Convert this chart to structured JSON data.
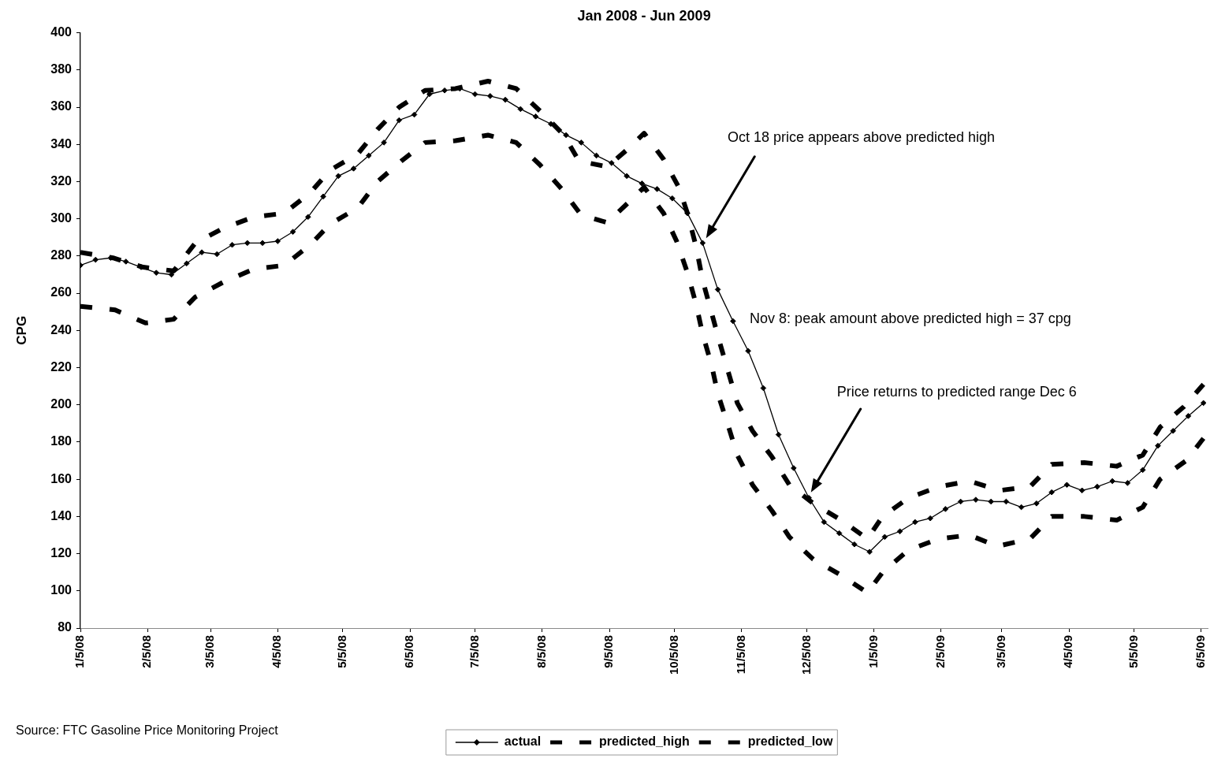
{
  "chart_data": {
    "type": "line",
    "title": "Jan 2008 - Jun 2009",
    "ylabel": "CPG",
    "xlim": [
      "2008-01-05",
      "2009-06-08"
    ],
    "xticks": [
      {
        "value": "2008-01-05",
        "label": "1/5/08"
      },
      {
        "value": "2008-02-05",
        "label": "2/5/08"
      },
      {
        "value": "2008-03-05",
        "label": "3/5/08"
      },
      {
        "value": "2008-04-05",
        "label": "4/5/08"
      },
      {
        "value": "2008-05-05",
        "label": "5/5/08"
      },
      {
        "value": "2008-06-05",
        "label": "6/5/08"
      },
      {
        "value": "2008-07-05",
        "label": "7/5/08"
      },
      {
        "value": "2008-08-05",
        "label": "8/5/08"
      },
      {
        "value": "2008-09-05",
        "label": "9/5/08"
      },
      {
        "value": "2008-10-05",
        "label": "10/5/08"
      },
      {
        "value": "2008-11-05",
        "label": "11/5/08"
      },
      {
        "value": "2008-12-05",
        "label": "12/5/08"
      },
      {
        "value": "2009-01-05",
        "label": "1/5/09"
      },
      {
        "value": "2009-02-05",
        "label": "2/5/09"
      },
      {
        "value": "2009-03-05",
        "label": "3/5/09"
      },
      {
        "value": "2009-04-05",
        "label": "4/5/09"
      },
      {
        "value": "2009-05-05",
        "label": "5/5/09"
      },
      {
        "value": "2009-06-05",
        "label": "6/5/09"
      }
    ],
    "ylim": [
      80,
      400
    ],
    "yticks": [
      80,
      100,
      120,
      140,
      160,
      180,
      200,
      220,
      240,
      260,
      280,
      300,
      320,
      340,
      360,
      380,
      400
    ],
    "legend": "bottom",
    "series": [
      {
        "name": "actual",
        "color": "#000000",
        "marker": "diamond",
        "line_style": "solid",
        "x": [
          "2008-01-05",
          "2008-01-12",
          "2008-01-19",
          "2008-01-26",
          "2008-02-02",
          "2008-02-09",
          "2008-02-16",
          "2008-02-23",
          "2008-03-01",
          "2008-03-08",
          "2008-03-15",
          "2008-03-22",
          "2008-03-29",
          "2008-04-05",
          "2008-04-12",
          "2008-04-19",
          "2008-04-26",
          "2008-05-03",
          "2008-05-10",
          "2008-05-17",
          "2008-05-24",
          "2008-05-31",
          "2008-06-07",
          "2008-06-14",
          "2008-06-21",
          "2008-06-28",
          "2008-07-05",
          "2008-07-12",
          "2008-07-19",
          "2008-07-26",
          "2008-08-02",
          "2008-08-09",
          "2008-08-16",
          "2008-08-23",
          "2008-08-30",
          "2008-09-06",
          "2008-09-13",
          "2008-09-20",
          "2008-09-27",
          "2008-10-04",
          "2008-10-11",
          "2008-10-18",
          "2008-10-25",
          "2008-11-01",
          "2008-11-08",
          "2008-11-15",
          "2008-11-22",
          "2008-11-29",
          "2008-12-06",
          "2008-12-13",
          "2008-12-20",
          "2008-12-27",
          "2009-01-03",
          "2009-01-10",
          "2009-01-17",
          "2009-01-24",
          "2009-01-31",
          "2009-02-07",
          "2009-02-14",
          "2009-02-21",
          "2009-02-28",
          "2009-03-07",
          "2009-03-14",
          "2009-03-21",
          "2009-03-28",
          "2009-04-04",
          "2009-04-11",
          "2009-04-18",
          "2009-04-25",
          "2009-05-02",
          "2009-05-09",
          "2009-05-16",
          "2009-05-23",
          "2009-05-30",
          "2009-06-06"
        ],
        "values": [
          275,
          278,
          279,
          277,
          274,
          271,
          270,
          276,
          282,
          281,
          286,
          287,
          287,
          288,
          293,
          301,
          312,
          323,
          327,
          334,
          341,
          353,
          356,
          367,
          369,
          370,
          367,
          366,
          364,
          359,
          355,
          351,
          345,
          341,
          334,
          330,
          323,
          319,
          316,
          311,
          303,
          287,
          262,
          245,
          229,
          209,
          184,
          166,
          150,
          137,
          131,
          125,
          121,
          129,
          132,
          137,
          139,
          144,
          148,
          149,
          148,
          148,
          145,
          147,
          153,
          157,
          154,
          156,
          159,
          158,
          165,
          178,
          186,
          194,
          201
        ]
      },
      {
        "name": "predicted_high",
        "color": "#000000",
        "marker": "none",
        "line_style": "dashed",
        "x": [
          "2008-01-05",
          "2008-01-20",
          "2008-02-03",
          "2008-02-17",
          "2008-02-27",
          "2008-03-11",
          "2008-03-25",
          "2008-04-08",
          "2008-04-20",
          "2008-04-29",
          "2008-05-12",
          "2008-05-21",
          "2008-05-31",
          "2008-06-12",
          "2008-06-26",
          "2008-07-11",
          "2008-07-24",
          "2008-08-04",
          "2008-08-15",
          "2008-08-22",
          "2008-09-04",
          "2008-09-14",
          "2008-09-21",
          "2008-09-30",
          "2008-10-07",
          "2008-10-11",
          "2008-10-15",
          "2008-10-18",
          "2008-10-22",
          "2008-10-26",
          "2008-10-30",
          "2008-11-03",
          "2008-11-10",
          "2008-11-19",
          "2008-11-27",
          "2008-12-08",
          "2008-12-21",
          "2009-01-02",
          "2009-01-09",
          "2009-01-21",
          "2009-02-04",
          "2009-02-18",
          "2009-03-04",
          "2009-03-18",
          "2009-03-28",
          "2009-04-12",
          "2009-04-27",
          "2009-05-09",
          "2009-05-17",
          "2009-05-28",
          "2009-06-06"
        ],
        "values": [
          282,
          279,
          274,
          272,
          287,
          295,
          301,
          303,
          314,
          326,
          335,
          348,
          360,
          369,
          370,
          374,
          370,
          358,
          345,
          331,
          328,
          338,
          346,
          332,
          317,
          303,
          285,
          267,
          250,
          233,
          217,
          201,
          186,
          172,
          157,
          147,
          138,
          128,
          140,
          150,
          156,
          159,
          154,
          156,
          168,
          169,
          167,
          173,
          188,
          199,
          211
        ]
      },
      {
        "name": "predicted_low",
        "color": "#000000",
        "marker": "none",
        "line_style": "dashed",
        "x": [
          "2008-01-05",
          "2008-01-21",
          "2008-02-04",
          "2008-02-17",
          "2008-02-27",
          "2008-03-11",
          "2008-03-25",
          "2008-04-08",
          "2008-04-20",
          "2008-04-29",
          "2008-05-12",
          "2008-05-21",
          "2008-06-01",
          "2008-06-12",
          "2008-06-26",
          "2008-07-11",
          "2008-07-24",
          "2008-08-04",
          "2008-08-14",
          "2008-08-23",
          "2008-09-04",
          "2008-09-14",
          "2008-09-21",
          "2008-09-30",
          "2008-10-06",
          "2008-10-11",
          "2008-10-15",
          "2008-10-18",
          "2008-10-22",
          "2008-10-25",
          "2008-10-30",
          "2008-11-03",
          "2008-11-10",
          "2008-11-19",
          "2008-11-27",
          "2008-12-08",
          "2008-12-20",
          "2009-01-02",
          "2009-01-09",
          "2009-01-21",
          "2009-02-04",
          "2009-02-18",
          "2009-03-03",
          "2009-03-18",
          "2009-03-28",
          "2009-04-12",
          "2009-04-27",
          "2009-05-09",
          "2009-05-17",
          "2009-05-29",
          "2009-06-06"
        ],
        "values": [
          253,
          251,
          244,
          246,
          258,
          266,
          273,
          275,
          286,
          297,
          306,
          320,
          331,
          341,
          342,
          345,
          341,
          329,
          316,
          302,
          298,
          309,
          317,
          303,
          288,
          271,
          254,
          238,
          222,
          206,
          188,
          173,
          157,
          143,
          129,
          117,
          109,
          99,
          110,
          122,
          128,
          130,
          124,
          128,
          140,
          140,
          138,
          145,
          160,
          170,
          182
        ]
      }
    ],
    "annotations": [
      "Oct 18 price appears above predicted high",
      {
        "text": "Nov 8: peak amount above predicted high = 37 cpg",
        "x": "2008-11-08",
        "y": 229
      },
      "Price returns to predicted range Dec 6",
      "Source: FTC Gasoline Price Monitoring Project"
    ]
  }
}
